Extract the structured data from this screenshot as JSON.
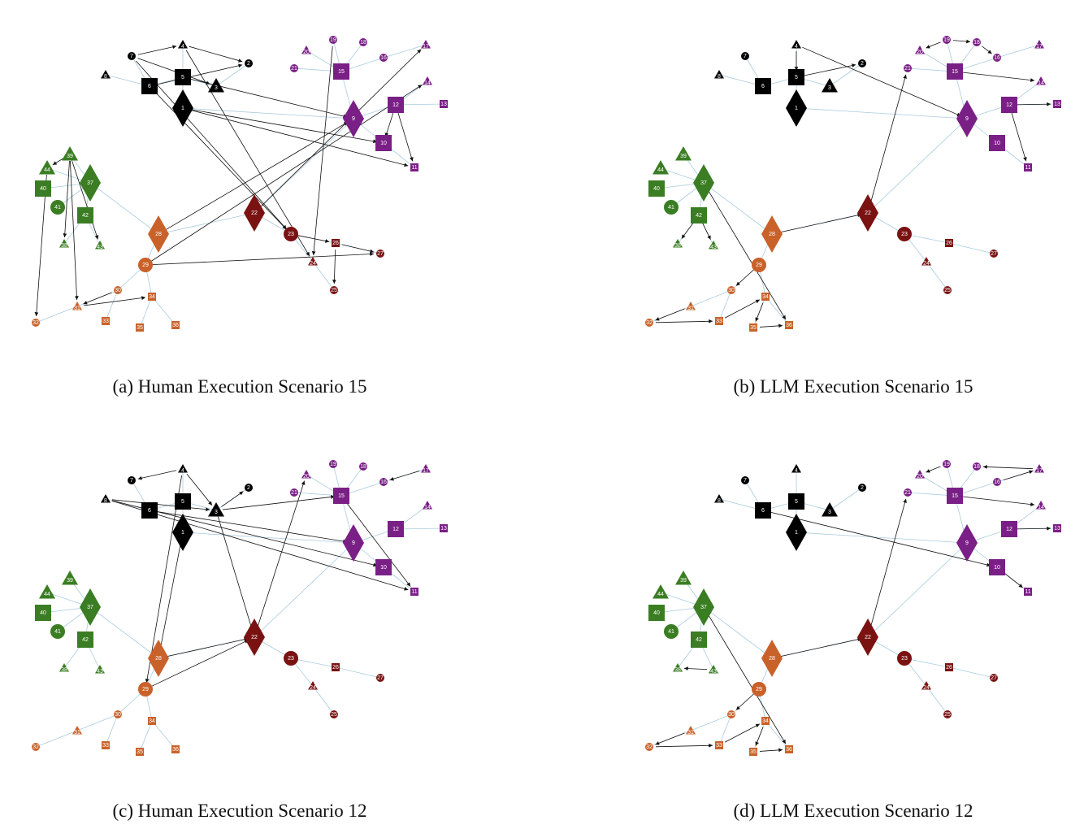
{
  "panels": [
    {
      "caption": "(a) Human Execution Scenario 15"
    },
    {
      "caption": "(b) LLM Execution Scenario 15"
    },
    {
      "caption": "(c) Human Execution Scenario 12"
    },
    {
      "caption": "(d) LLM Execution Scenario 12"
    }
  ],
  "nodes": [
    {
      "label": "1"
    },
    {
      "label": "2"
    },
    {
      "label": "3"
    },
    {
      "label": "4"
    },
    {
      "label": "5"
    },
    {
      "label": "6"
    },
    {
      "label": "7"
    },
    {
      "label": "8"
    },
    {
      "label": "9"
    },
    {
      "label": "10"
    },
    {
      "label": "11"
    },
    {
      "label": "12"
    },
    {
      "label": "13"
    },
    {
      "label": "14"
    },
    {
      "label": "15"
    },
    {
      "label": "16"
    },
    {
      "label": "17"
    },
    {
      "label": "18"
    },
    {
      "label": "19"
    },
    {
      "label": "20"
    },
    {
      "label": "21"
    },
    {
      "label": "22"
    },
    {
      "label": "23"
    },
    {
      "label": "24"
    },
    {
      "label": "25"
    },
    {
      "label": "26"
    },
    {
      "label": "27"
    },
    {
      "label": "28"
    },
    {
      "label": "29"
    },
    {
      "label": "30"
    },
    {
      "label": "31"
    },
    {
      "label": "32"
    },
    {
      "label": "33"
    },
    {
      "label": "34"
    },
    {
      "label": "35"
    },
    {
      "label": "36"
    },
    {
      "label": "37"
    },
    {
      "label": "38"
    },
    {
      "label": "39"
    },
    {
      "label": "40"
    },
    {
      "label": "41"
    },
    {
      "label": "42"
    },
    {
      "label": "43"
    },
    {
      "label": "44"
    }
  ]
}
